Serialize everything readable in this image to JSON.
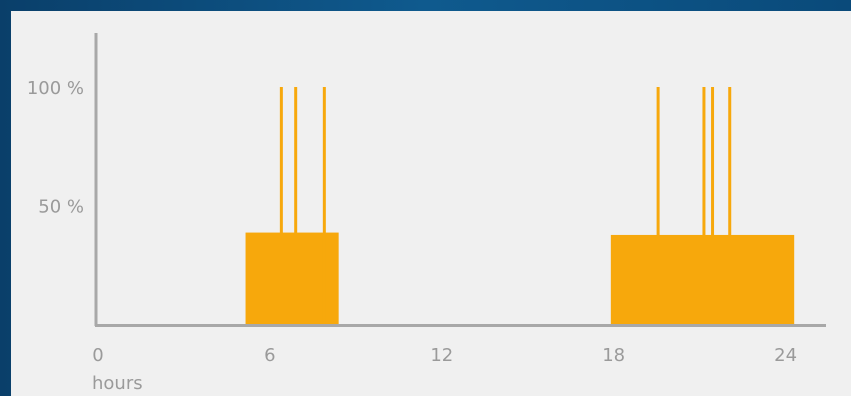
{
  "colors": {
    "background_border": "#0b4a7a",
    "panel": "#f0f0f0",
    "axis": "#a8a8a8",
    "bar": "#f7a80c",
    "text": "#9a9a9a"
  },
  "chart_data": {
    "type": "bar",
    "xlabel": "hours",
    "ylabel": "",
    "xlim": [
      0,
      25
    ],
    "ylim": [
      0,
      110
    ],
    "x_ticks": [
      {
        "value": 0,
        "label": "0"
      },
      {
        "value": 6,
        "label": "6"
      },
      {
        "value": 12,
        "label": "12"
      },
      {
        "value": 18,
        "label": "18"
      },
      {
        "value": 24,
        "label": "24"
      }
    ],
    "y_ticks": [
      {
        "value": 50,
        "label": "50 %"
      },
      {
        "value": 100,
        "label": "100 %"
      }
    ],
    "blocks": [
      {
        "start": 5.15,
        "end": 8.4,
        "value": 39
      },
      {
        "start": 17.9,
        "end": 24.3,
        "value": 38
      }
    ],
    "spikes": [
      {
        "x": 6.4,
        "value": 100
      },
      {
        "x": 6.9,
        "value": 100
      },
      {
        "x": 7.9,
        "value": 100
      },
      {
        "x": 19.55,
        "value": 100
      },
      {
        "x": 21.15,
        "value": 100
      },
      {
        "x": 21.45,
        "value": 100
      },
      {
        "x": 22.05,
        "value": 100
      }
    ],
    "grid": false,
    "legend": "none"
  }
}
